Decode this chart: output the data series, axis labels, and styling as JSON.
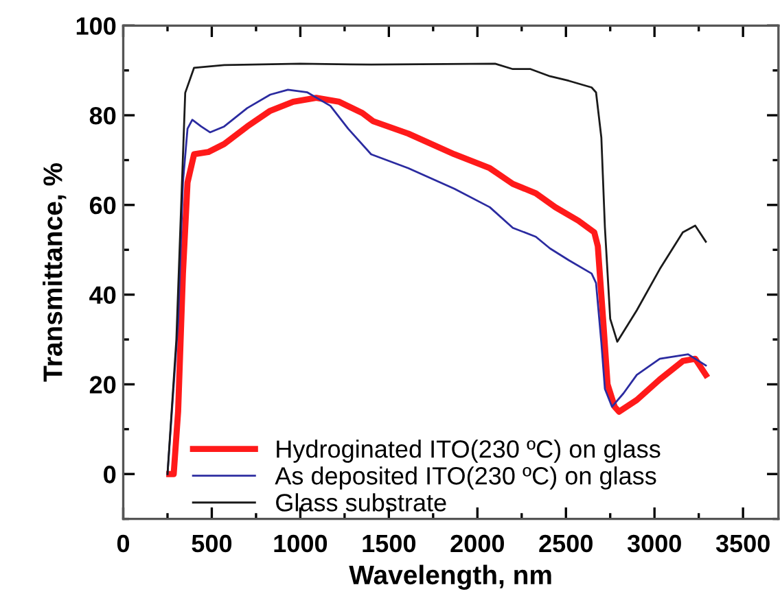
{
  "chart_data": {
    "type": "line",
    "xlabel": "Wavelength, nm",
    "ylabel": "Transmittance, %",
    "xlim": [
      0,
      3700
    ],
    "ylim": [
      -10,
      100
    ],
    "xticks": [
      0,
      500,
      1000,
      1500,
      2000,
      2500,
      3000,
      3500
    ],
    "yticks": [
      0,
      20,
      40,
      60,
      80,
      100
    ],
    "grid": false,
    "legend": "bottom left",
    "marker": "none",
    "line_style": "solid",
    "series": [
      {
        "name": "Hydroginated ITO(230 ºC) on glass",
        "color": "#ff1a1a",
        "x": [
          260,
          285,
          310,
          337,
          363,
          400,
          480,
          570,
          700,
          830,
          960,
          1090,
          1220,
          1350,
          1410,
          1610,
          1870,
          2070,
          2200,
          2330,
          2440,
          2570,
          2660,
          2680,
          2710,
          2735,
          2775,
          2800,
          2900,
          3030,
          3160,
          3230,
          3290
        ],
        "values": [
          0,
          0,
          14,
          44.7,
          65,
          71.3,
          71.8,
          73.6,
          77.5,
          81,
          83,
          83.9,
          83,
          80.5,
          78.7,
          75.9,
          71.3,
          68.2,
          64.7,
          62.6,
          59.5,
          56.5,
          53.9,
          50.8,
          34.4,
          20,
          15,
          13.9,
          16.5,
          21.1,
          25.2,
          25.7,
          22.1
        ]
      },
      {
        "name": "As deposited ITO(230 ºC) on glass",
        "color": "#2b2ba0",
        "x": [
          250,
          310,
          337,
          363,
          390,
          440,
          490,
          570,
          700,
          830,
          930,
          1040,
          1170,
          1270,
          1400,
          1610,
          1870,
          2070,
          2200,
          2330,
          2410,
          2515,
          2645,
          2670,
          2700,
          2720,
          2760,
          2825,
          2900,
          3030,
          3190,
          3290
        ],
        "values": [
          0,
          34,
          65,
          77,
          79,
          77.5,
          76.2,
          77.5,
          81.6,
          84.6,
          85.7,
          85.1,
          82.1,
          77,
          71.3,
          68.2,
          63.6,
          59.5,
          54.9,
          52.9,
          50.3,
          47.7,
          44.7,
          42.6,
          29.3,
          19,
          15,
          18,
          22.1,
          25.7,
          26.7,
          24.2
        ]
      },
      {
        "name": "Glass substrate",
        "color": "#1a1a1a",
        "x": [
          250,
          300,
          350,
          400,
          570,
          1000,
          1400,
          2100,
          2200,
          2300,
          2410,
          2515,
          2645,
          2670,
          2700,
          2720,
          2750,
          2790,
          2900,
          3030,
          3160,
          3230,
          3290
        ],
        "values": [
          0,
          30,
          85,
          90.6,
          91.2,
          91.5,
          91.3,
          91.5,
          90.3,
          90.3,
          88.7,
          87.7,
          86.2,
          85.1,
          75,
          55,
          34.6,
          29.5,
          36.5,
          45.7,
          53.9,
          55.4,
          51.8
        ]
      }
    ]
  }
}
